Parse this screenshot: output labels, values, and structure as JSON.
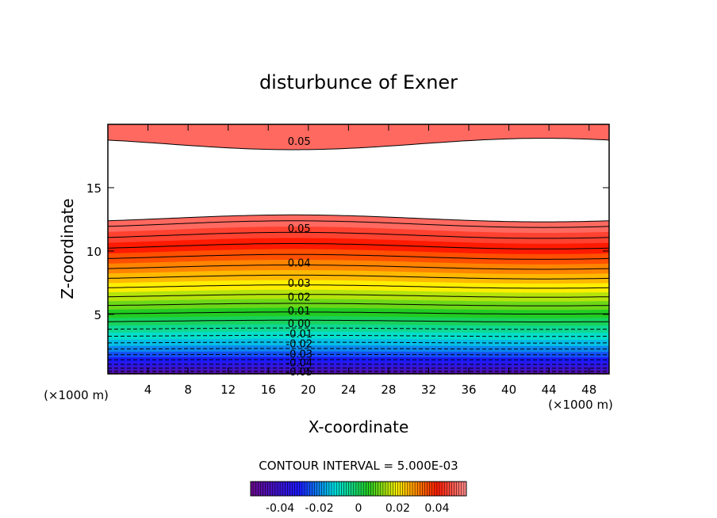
{
  "chart_data": {
    "type": "heatmap",
    "title": "disturbunce of Exner",
    "xlabel": "X-coordinate",
    "ylabel": "Z-coordinate",
    "x_unit_left": "(×1000 m)",
    "x_unit_right": "(×1000 m)",
    "xlim": [
      0,
      50
    ],
    "ylim": [
      0.3,
      20
    ],
    "x_ticks": [
      4,
      8,
      12,
      16,
      20,
      24,
      28,
      32,
      36,
      40,
      44,
      48
    ],
    "y_ticks": [
      5,
      10,
      15
    ],
    "contour_interval_text": "CONTOUR INTERVAL = 5.000E-03",
    "contour_labels": [
      {
        "text": "0.05",
        "x": 17.5,
        "z": 18.7
      },
      {
        "text": "0.05",
        "x": 17.5,
        "z": 11.8
      },
      {
        "text": "0.04",
        "x": 17.5,
        "z": 9.1
      },
      {
        "text": "0.03",
        "x": 17.5,
        "z": 7.5
      },
      {
        "text": "0.02",
        "x": 17.5,
        "z": 6.4
      },
      {
        "text": "0.01",
        "x": 17.5,
        "z": 5.3
      },
      {
        "text": "0.00",
        "x": 17.5,
        "z": 4.3
      },
      {
        "text": "-0.01",
        "x": 17.5,
        "z": 3.5
      },
      {
        "text": "-0.02",
        "x": 17.5,
        "z": 2.7
      },
      {
        "text": "-0.03",
        "x": 17.5,
        "z": 1.9
      },
      {
        "text": "-0.04",
        "x": 17.5,
        "z": 1.2
      },
      {
        "text": "-0.05",
        "x": 17.5,
        "z": 0.5
      }
    ],
    "colorbar": {
      "range": [
        -0.055,
        0.055
      ],
      "tick_values": [
        -0.04,
        -0.02,
        0,
        0.02,
        0.04
      ],
      "tick_labels": [
        "-0.04",
        "-0.02",
        "0",
        "0.02",
        "0.04"
      ]
    },
    "colors": {
      "min": "#6a0a8c",
      "neg_mid": "#1a1aff",
      "zero": "#00e0e0",
      "pos_low": "#22cc22",
      "pos_mid": "#ffee00",
      "pos_high": "#ff1a00",
      "max": "#ff9090",
      "saturated": "#ffffff"
    }
  }
}
